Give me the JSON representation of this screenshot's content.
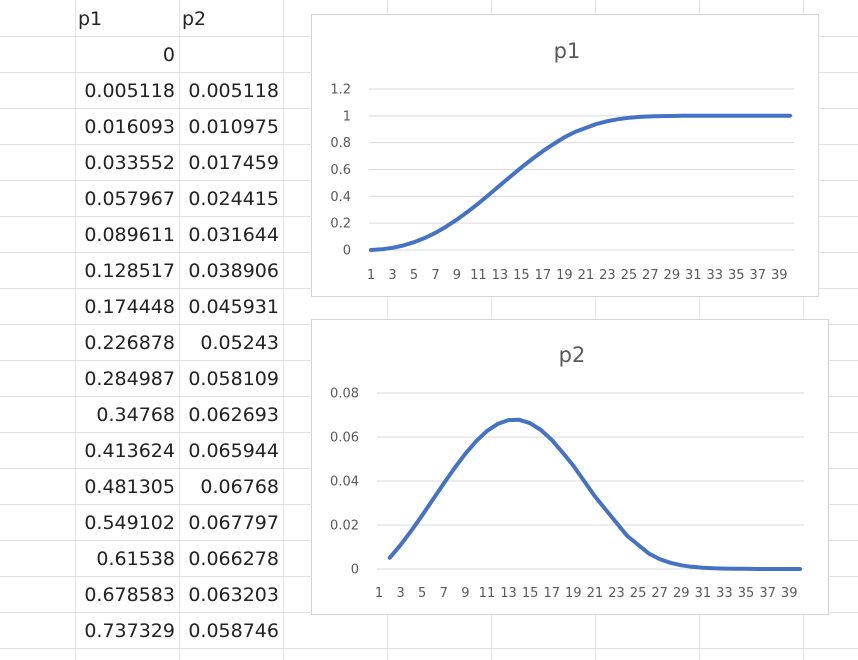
{
  "sheet": {
    "headers": [
      "p1",
      "p2"
    ],
    "rows": [
      [
        "0",
        ""
      ],
      [
        "0.005118",
        "0.005118"
      ],
      [
        "0.016093",
        "0.010975"
      ],
      [
        "0.033552",
        "0.017459"
      ],
      [
        "0.057967",
        "0.024415"
      ],
      [
        "0.089611",
        "0.031644"
      ],
      [
        "0.128517",
        "0.038906"
      ],
      [
        "0.174448",
        "0.045931"
      ],
      [
        "0.226878",
        "0.05243"
      ],
      [
        "0.284987",
        "0.058109"
      ],
      [
        "0.34768",
        "0.062693"
      ],
      [
        "0.413624",
        "0.065944"
      ],
      [
        "0.481305",
        "0.06768"
      ],
      [
        "0.549102",
        "0.067797"
      ],
      [
        "0.61538",
        "0.066278"
      ],
      [
        "0.678583",
        "0.063203"
      ],
      [
        "0.737329",
        "0.058746"
      ]
    ]
  },
  "chart_data": [
    {
      "type": "line",
      "title": "p1",
      "color": "#4472C4",
      "x": [
        1,
        2,
        3,
        4,
        5,
        6,
        7,
        8,
        9,
        10,
        11,
        12,
        13,
        14,
        15,
        16,
        17,
        18,
        19,
        20,
        21,
        22,
        23,
        24,
        25,
        26,
        27,
        28,
        29,
        30,
        31,
        32,
        33,
        34,
        35,
        36,
        37,
        38,
        39,
        40
      ],
      "values": [
        0,
        0.005118,
        0.016093,
        0.033552,
        0.057967,
        0.089611,
        0.128517,
        0.174448,
        0.226878,
        0.284987,
        0.34768,
        0.413624,
        0.481305,
        0.549102,
        0.61538,
        0.678583,
        0.737329,
        0.79,
        0.84,
        0.88,
        0.91,
        0.94,
        0.96,
        0.975,
        0.985,
        0.992,
        0.996,
        0.998,
        0.999,
        1,
        1,
        1,
        1,
        1,
        1,
        1,
        1,
        1,
        1,
        1
      ],
      "xticks": [
        "1",
        "3",
        "5",
        "7",
        "9",
        "11",
        "13",
        "15",
        "17",
        "19",
        "21",
        "23",
        "25",
        "27",
        "29",
        "31",
        "33",
        "35",
        "37",
        "39"
      ],
      "yticks": [
        "0",
        "0.2",
        "0.4",
        "0.6",
        "0.8",
        "1",
        "1.2"
      ],
      "ylim": [
        0,
        1.2
      ],
      "grid": true
    },
    {
      "type": "line",
      "title": "p2",
      "color": "#4472C4",
      "x": [
        2,
        3,
        4,
        5,
        6,
        7,
        8,
        9,
        10,
        11,
        12,
        13,
        14,
        15,
        16,
        17,
        18,
        19,
        20,
        21,
        22,
        23,
        24,
        25,
        26,
        27,
        28,
        29,
        30,
        31,
        32,
        33,
        34,
        35,
        36,
        37,
        38,
        39,
        40
      ],
      "values": [
        0.005118,
        0.010975,
        0.017459,
        0.024415,
        0.031644,
        0.038906,
        0.045931,
        0.05243,
        0.058109,
        0.062693,
        0.065944,
        0.06768,
        0.067797,
        0.066278,
        0.063203,
        0.058746,
        0.053,
        0.047,
        0.04,
        0.033,
        0.027,
        0.021,
        0.015,
        0.011,
        0.007,
        0.0045,
        0.0028,
        0.0017,
        0.001,
        0.0006,
        0.0003,
        0.0002,
        0.0001,
        0.0001,
        0,
        0,
        0,
        0,
        0
      ],
      "xticks": [
        "1",
        "3",
        "5",
        "7",
        "9",
        "11",
        "13",
        "15",
        "17",
        "19",
        "21",
        "23",
        "25",
        "27",
        "29",
        "31",
        "33",
        "35",
        "37",
        "39"
      ],
      "yticks": [
        "0",
        "0.02",
        "0.04",
        "0.06",
        "0.08"
      ],
      "ylim": [
        0,
        0.08
      ],
      "grid": true
    }
  ]
}
